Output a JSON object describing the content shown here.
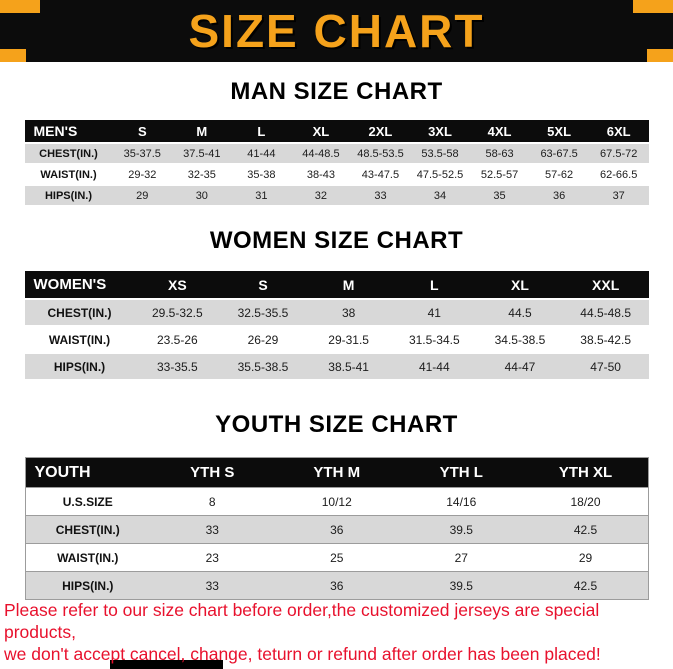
{
  "colors": {
    "accent": "#F5A21B",
    "banner_bg": "#0C0C0C",
    "footer_text": "#E8112D",
    "row_shade": "#D8D8D8"
  },
  "banner": {
    "title": "SIZE CHART"
  },
  "sections": [
    {
      "id": "men",
      "heading": "MAN SIZE CHART",
      "table": {
        "corner": "MEN'S",
        "sizes": [
          "S",
          "M",
          "L",
          "XL",
          "2XL",
          "3XL",
          "4XL",
          "5XL",
          "6XL"
        ],
        "rows": [
          {
            "label": "CHEST(IN.)",
            "shaded": true,
            "values": [
              "35-37.5",
              "37.5-41",
              "41-44",
              "44-48.5",
              "48.5-53.5",
              "53.5-58",
              "58-63",
              "63-67.5",
              "67.5-72"
            ]
          },
          {
            "label": "WAIST(IN.)",
            "shaded": false,
            "values": [
              "29-32",
              "32-35",
              "35-38",
              "38-43",
              "43-47.5",
              "47.5-52.5",
              "52.5-57",
              "57-62",
              "62-66.5"
            ]
          },
          {
            "label": "HIPS(IN.)",
            "shaded": true,
            "values": [
              "29",
              "30",
              "31",
              "32",
              "33",
              "34",
              "35",
              "36",
              "37"
            ]
          }
        ]
      }
    },
    {
      "id": "women",
      "heading": "WOMEN SIZE CHART",
      "table": {
        "corner": "WOMEN'S",
        "sizes": [
          "XS",
          "S",
          "M",
          "L",
          "XL",
          "XXL"
        ],
        "rows": [
          {
            "label": "CHEST(IN.)",
            "shaded": true,
            "values": [
              "29.5-32.5",
              "32.5-35.5",
              "38",
              "41",
              "44.5",
              "44.5-48.5"
            ]
          },
          {
            "label": "WAIST(IN.)",
            "shaded": false,
            "values": [
              "23.5-26",
              "26-29",
              "29-31.5",
              "31.5-34.5",
              "34.5-38.5",
              "38.5-42.5"
            ]
          },
          {
            "label": "HIPS(IN.)",
            "shaded": true,
            "values": [
              "33-35.5",
              "35.5-38.5",
              "38.5-41",
              "41-44",
              "44-47",
              "47-50"
            ]
          }
        ]
      }
    },
    {
      "id": "youth",
      "heading": "YOUTH SIZE CHART",
      "table": {
        "corner": "YOUTH",
        "sizes": [
          "YTH S",
          "YTH M",
          "YTH L",
          "YTH XL"
        ],
        "rows": [
          {
            "label": "U.S.SIZE",
            "shaded": false,
            "values": [
              "8",
              "10/12",
              "14/16",
              "18/20"
            ]
          },
          {
            "label": "CHEST(IN.)",
            "shaded": true,
            "values": [
              "33",
              "36",
              "39.5",
              "42.5"
            ]
          },
          {
            "label": "WAIST(IN.)",
            "shaded": false,
            "values": [
              "23",
              "25",
              "27",
              "29"
            ]
          },
          {
            "label": "HIPS(IN.)",
            "shaded": true,
            "values": [
              "33",
              "36",
              "39.5",
              "42.5"
            ]
          }
        ]
      }
    }
  ],
  "footer": {
    "line1": "Please refer to our size chart before order,the customized jerseys are special products,",
    "line2": "we don't accept cancel, change, teturn or refund after order has been placed!"
  }
}
